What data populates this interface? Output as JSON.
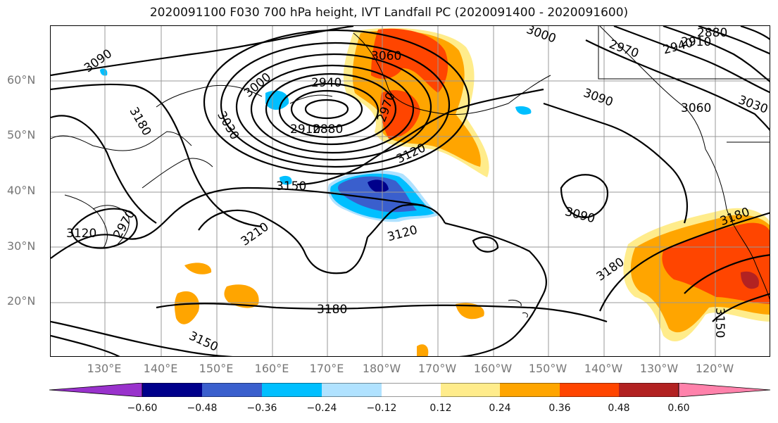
{
  "title": "2020091100 F030 700 hPa height, IVT Landfall PC (2020091400 - 2020091600)",
  "lat_labels": [
    "60°N",
    "50°N",
    "40°N",
    "30°N",
    "20°N"
  ],
  "lon_labels": [
    "130°E",
    "140°E",
    "150°E",
    "160°E",
    "170°E",
    "180°W",
    "170°W",
    "160°W",
    "150°W",
    "140°W",
    "130°W",
    "120°W"
  ],
  "contour_labels": [
    "3090",
    "3060",
    "3000",
    "2940",
    "3030",
    "3180",
    "2970",
    "2910",
    "2880",
    "2940",
    "2970",
    "3000",
    "2910",
    "2880",
    "3120",
    "3150",
    "3210",
    "3120",
    "3090",
    "3180",
    "3180",
    "3150",
    "3060",
    "3030",
    "3120",
    "3150",
    "3180",
    "3090",
    "2970"
  ],
  "colorbar": {
    "ticks": [
      "−0.60",
      "−0.48",
      "−0.36",
      "−0.24",
      "−0.12",
      "0.12",
      "0.24",
      "0.36",
      "0.48",
      "0.60"
    ],
    "colors": [
      "#9932CC",
      "#00008B",
      "#3A5FCD",
      "#00BFFF",
      "#B0E2FF",
      "#FFFFFF",
      "#FFEC8B",
      "#FFA500",
      "#FF4500",
      "#B22222",
      "#FF82AB"
    ]
  },
  "colors": {
    "contour": "#000000",
    "grid": "#999999",
    "coast": "#000000"
  }
}
